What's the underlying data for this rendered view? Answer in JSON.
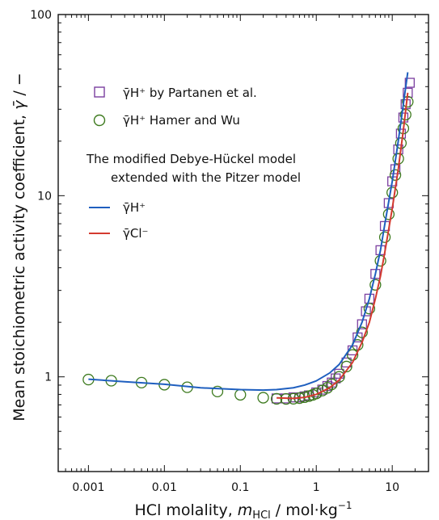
{
  "chart_data": {
    "type": "scatter",
    "xlabel": "HCl molality, m_HCl / mol·kg⁻¹",
    "xlabel_parts": {
      "pre": "HCl molality, ",
      "var": "m",
      "sub": "HCl",
      "post": " / mol·kg",
      "sup": "−1"
    },
    "ylabel": "Mean stoichiometric activity coefficient, γ̄ / −",
    "ylabel_parts": {
      "pre": "Mean stoichiometric activity coefficient, ",
      "var": "γ̄",
      "post": " / −"
    },
    "xscale": "log",
    "yscale": "log",
    "xlim": [
      0.0004,
      30
    ],
    "ylim": [
      0.3,
      100
    ],
    "x_ticks": [
      {
        "value": 0.001,
        "label": "0.001"
      },
      {
        "value": 0.01,
        "label": "0.01"
      },
      {
        "value": 0.1,
        "label": "0.1"
      },
      {
        "value": 1,
        "label": "1"
      },
      {
        "value": 10,
        "label": "10"
      }
    ],
    "y_ticks": [
      {
        "value": 1,
        "label": "1"
      },
      {
        "value": 10,
        "label": "10"
      },
      {
        "value": 100,
        "label": "100"
      }
    ],
    "legend": {
      "placement": "upper-left",
      "markers": [
        {
          "label": "γ̄H⁺ by Partanen et al.",
          "marker": "square",
          "color": "#7b3fa0"
        },
        {
          "label": "γ̄H⁺ Hamer and Wu",
          "marker": "circle",
          "color": "#3d7a1e"
        }
      ],
      "model_title_line1": "The modified Debye-Hückel model",
      "model_title_line2": "extended with the Pitzer model",
      "lines": [
        {
          "label": "γ̄H⁺",
          "color": "#1f5fbf"
        },
        {
          "label": "γ̄Cl⁻",
          "color": "#d43a2f"
        }
      ]
    },
    "series": [
      {
        "name": "γ̄H⁺ by Partanen et al.",
        "kind": "marker",
        "marker": "square",
        "color": "#7b3fa0",
        "x": [
          0.3,
          0.4,
          0.5,
          0.6,
          0.7,
          0.8,
          1.0,
          1.2,
          1.4,
          1.6,
          1.8,
          2.0,
          2.5,
          3.0,
          3.5,
          4.0,
          4.5,
          5.0,
          6.0,
          7.0,
          8.0,
          9.0,
          10.0,
          11.0,
          12.0,
          13.0,
          14.0,
          15.0,
          16.0,
          17.0
        ],
        "y": [
          0.76,
          0.76,
          0.77,
          0.77,
          0.78,
          0.79,
          0.82,
          0.85,
          0.89,
          0.93,
          0.98,
          1.04,
          1.2,
          1.4,
          1.65,
          1.95,
          2.3,
          2.7,
          3.7,
          5.0,
          6.8,
          9.1,
          12.0,
          14.0,
          18.0,
          22.0,
          27.0,
          32.0,
          37.0,
          42.0
        ]
      },
      {
        "name": "γ̄H⁺ Hamer and Wu",
        "kind": "marker",
        "marker": "circle",
        "color": "#3d7a1e",
        "x": [
          0.001,
          0.002,
          0.005,
          0.01,
          0.02,
          0.05,
          0.1,
          0.2,
          0.3,
          0.4,
          0.5,
          0.6,
          0.7,
          0.8,
          0.9,
          1.0,
          1.2,
          1.4,
          1.6,
          2.0,
          2.5,
          3.0,
          3.5,
          4.0,
          5.0,
          6.0,
          7.0,
          8.0,
          9.0,
          10.0,
          11.0,
          12.0,
          13.0,
          14.0,
          15.0,
          16.0
        ],
        "y": [
          0.966,
          0.952,
          0.929,
          0.905,
          0.876,
          0.83,
          0.796,
          0.767,
          0.756,
          0.755,
          0.757,
          0.763,
          0.772,
          0.783,
          0.795,
          0.809,
          0.84,
          0.87,
          0.91,
          1.0,
          1.14,
          1.32,
          1.5,
          1.76,
          2.38,
          3.22,
          4.37,
          5.9,
          7.9,
          10.4,
          13.0,
          16.0,
          19.5,
          23.5,
          28.0,
          33.0
        ]
      },
      {
        "name": "γ̄H⁺ model",
        "kind": "line",
        "color": "#1f5fbf",
        "x": [
          0.001,
          0.003,
          0.01,
          0.03,
          0.1,
          0.2,
          0.3,
          0.5,
          0.7,
          1.0,
          1.5,
          2.0,
          3.0,
          4.0,
          5.0,
          6.0,
          7.0,
          8.0,
          10.0,
          12.0,
          14.0,
          16.0
        ],
        "y": [
          0.97,
          0.94,
          0.91,
          0.87,
          0.85,
          0.845,
          0.85,
          0.87,
          0.9,
          0.95,
          1.05,
          1.17,
          1.5,
          2.0,
          2.7,
          3.7,
          5.0,
          7.0,
          12.0,
          20.0,
          32.0,
          48.0
        ]
      },
      {
        "name": "γ̄Cl⁻ model",
        "kind": "line",
        "color": "#d43a2f",
        "x": [
          0.3,
          0.5,
          0.7,
          1.0,
          1.5,
          2.0,
          3.0,
          4.0,
          5.0,
          6.0,
          7.0,
          8.0,
          10.0,
          12.0,
          14.0,
          16.0
        ],
        "y": [
          0.765,
          0.76,
          0.77,
          0.8,
          0.87,
          0.96,
          1.2,
          1.55,
          2.0,
          2.7,
          3.6,
          4.9,
          8.5,
          14.0,
          23.0,
          37.0
        ]
      }
    ]
  }
}
